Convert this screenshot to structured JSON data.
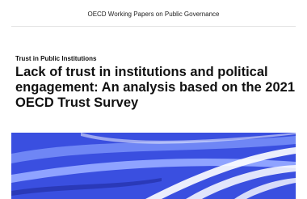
{
  "header": {
    "publication": "OECD Working Papers on Public Governance"
  },
  "cover": {
    "series": "Trust in Public Institutions",
    "title_lines": [
      "Lack of trust in institutions and political",
      "engagement: An analysis based on the 2021",
      "OECD Trust Survey"
    ]
  }
}
